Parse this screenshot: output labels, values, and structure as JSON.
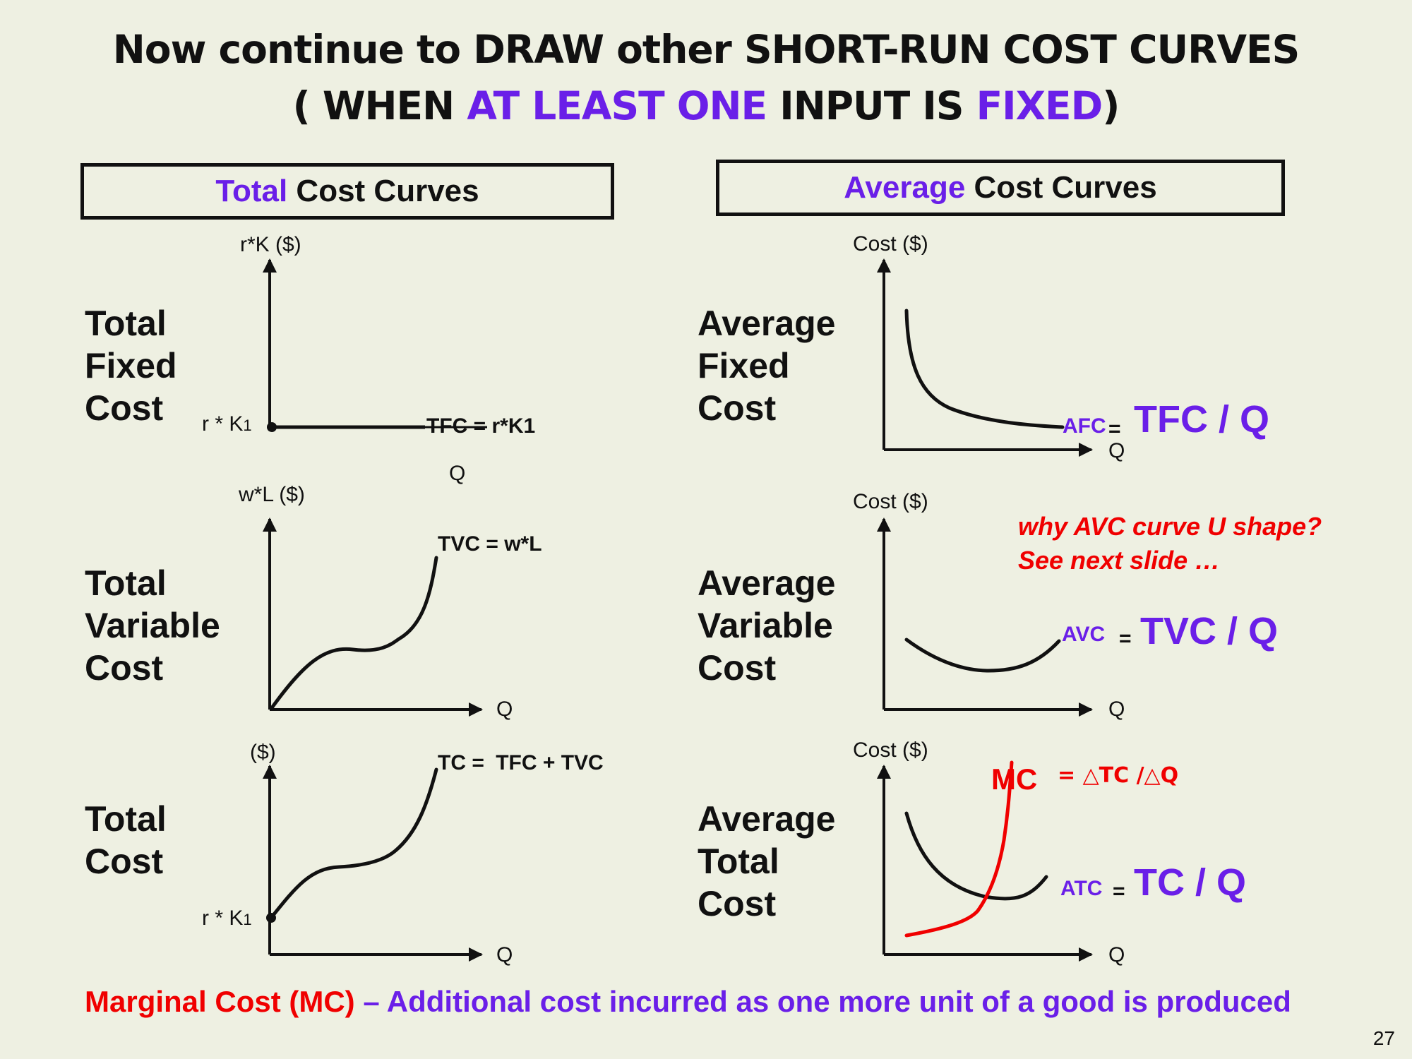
{
  "title": {
    "line1": "Now continue to DRAW other SHORT-RUN COST CURVES",
    "line2_open": "( WHEN ",
    "line2_highlight1": "AT LEAST ONE",
    "line2_mid": " INPUT IS ",
    "line2_highlight2": "FIXED",
    "line2_close": ")"
  },
  "left_header": {
    "highlight": "Total",
    "rest": " Cost Curves"
  },
  "right_header": {
    "highlight": "Average",
    "rest": " Cost Curves"
  },
  "rows": {
    "tfc": {
      "l1": "Total",
      "l2": "Fixed",
      "l3": "Cost"
    },
    "tvc": {
      "l1": "Total",
      "l2": "Variable",
      "l3": "Cost"
    },
    "tc": {
      "l1": "Total",
      "l2": "Cost"
    },
    "afc": {
      "l1": "Average",
      "l2": "Fixed",
      "l3": "Cost"
    },
    "avc": {
      "l1": "Average",
      "l2": "Variable",
      "l3": "Cost"
    },
    "atc": {
      "l1": "Average",
      "l2": "Total",
      "l3": "Cost"
    }
  },
  "graphs": {
    "tfc": {
      "ylabel": "r*K ($)",
      "xlabel": "Q",
      "point_label": "r * K",
      "point_sub": "1",
      "curve_label": "TFC = r*K1"
    },
    "tvc": {
      "ylabel": "w*L ($)",
      "xlabel": "Q",
      "curve_label": "TVC = w*L"
    },
    "tc": {
      "ylabel": "($)",
      "xlabel": "Q",
      "point_label": "r * K",
      "point_sub": "1",
      "curve_label_a": "TC = ",
      "curve_label_b": "TFC + TVC"
    },
    "afc": {
      "ylabel": "Cost ($)",
      "xlabel": "Q",
      "f_small": "AFC",
      "f_eq": "=",
      "f_big": "TFC / Q"
    },
    "avc": {
      "ylabel": "Cost ($)",
      "xlabel": "Q",
      "f_small": "AVC",
      "f_eq": "=",
      "f_big": "TVC / Q"
    },
    "atc": {
      "ylabel": "Cost ($)",
      "xlabel": "Q",
      "mc_label": "MC",
      "mc_formula": "= △TC /△Q",
      "f_small": "ATC",
      "f_eq": "=",
      "f_big": "TC / Q"
    }
  },
  "note": {
    "line1": "why AVC curve U shape?",
    "line2": "See next slide …"
  },
  "footer": {
    "red_part": "Marginal Cost (MC)",
    "purple_part": " – Additional cost incurred as one more unit of a good is produced"
  },
  "page_number": "27",
  "colors": {
    "background": "#eef0e2",
    "accent_purple": "#6a1fe8",
    "accent_red": "#f00000",
    "ink": "#111111"
  }
}
